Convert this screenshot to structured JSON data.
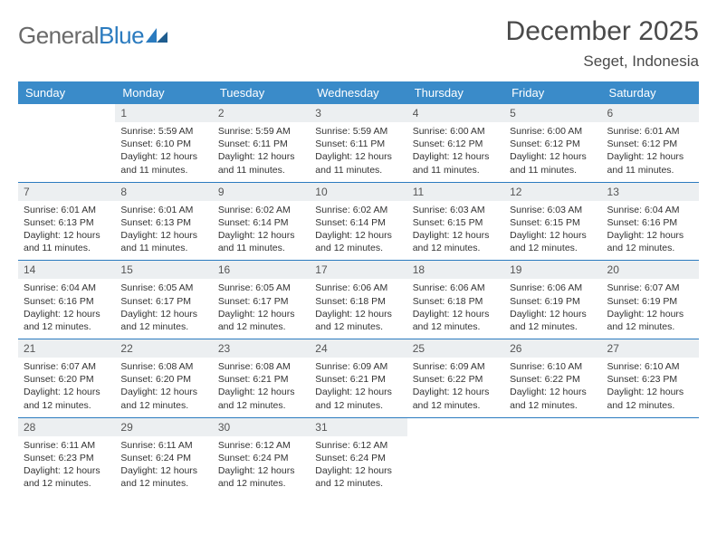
{
  "brand": {
    "part1": "General",
    "part2": "Blue"
  },
  "title": "December 2025",
  "location": "Seget, Indonesia",
  "colors": {
    "header_bg": "#3a8bc9",
    "header_text": "#ffffff",
    "rule": "#2b7bbf",
    "daynum_bg": "#eceff1",
    "text": "#333333",
    "logo_gray": "#6a6a6a",
    "logo_blue": "#2b7bbf",
    "page_bg": "#ffffff"
  },
  "fonts": {
    "title_pt": 30,
    "location_pt": 17,
    "dayhdr_pt": 13,
    "daynum_pt": 12,
    "body_pt": 10.5
  },
  "day_headers": [
    "Sunday",
    "Monday",
    "Tuesday",
    "Wednesday",
    "Thursday",
    "Friday",
    "Saturday"
  ],
  "weeks": [
    [
      {
        "n": "",
        "sr": "",
        "ss": "",
        "dl": ""
      },
      {
        "n": "1",
        "sr": "5:59 AM",
        "ss": "6:10 PM",
        "dl": "12 hours and 11 minutes."
      },
      {
        "n": "2",
        "sr": "5:59 AM",
        "ss": "6:11 PM",
        "dl": "12 hours and 11 minutes."
      },
      {
        "n": "3",
        "sr": "5:59 AM",
        "ss": "6:11 PM",
        "dl": "12 hours and 11 minutes."
      },
      {
        "n": "4",
        "sr": "6:00 AM",
        "ss": "6:12 PM",
        "dl": "12 hours and 11 minutes."
      },
      {
        "n": "5",
        "sr": "6:00 AM",
        "ss": "6:12 PM",
        "dl": "12 hours and 11 minutes."
      },
      {
        "n": "6",
        "sr": "6:01 AM",
        "ss": "6:12 PM",
        "dl": "12 hours and 11 minutes."
      }
    ],
    [
      {
        "n": "7",
        "sr": "6:01 AM",
        "ss": "6:13 PM",
        "dl": "12 hours and 11 minutes."
      },
      {
        "n": "8",
        "sr": "6:01 AM",
        "ss": "6:13 PM",
        "dl": "12 hours and 11 minutes."
      },
      {
        "n": "9",
        "sr": "6:02 AM",
        "ss": "6:14 PM",
        "dl": "12 hours and 11 minutes."
      },
      {
        "n": "10",
        "sr": "6:02 AM",
        "ss": "6:14 PM",
        "dl": "12 hours and 12 minutes."
      },
      {
        "n": "11",
        "sr": "6:03 AM",
        "ss": "6:15 PM",
        "dl": "12 hours and 12 minutes."
      },
      {
        "n": "12",
        "sr": "6:03 AM",
        "ss": "6:15 PM",
        "dl": "12 hours and 12 minutes."
      },
      {
        "n": "13",
        "sr": "6:04 AM",
        "ss": "6:16 PM",
        "dl": "12 hours and 12 minutes."
      }
    ],
    [
      {
        "n": "14",
        "sr": "6:04 AM",
        "ss": "6:16 PM",
        "dl": "12 hours and 12 minutes."
      },
      {
        "n": "15",
        "sr": "6:05 AM",
        "ss": "6:17 PM",
        "dl": "12 hours and 12 minutes."
      },
      {
        "n": "16",
        "sr": "6:05 AM",
        "ss": "6:17 PM",
        "dl": "12 hours and 12 minutes."
      },
      {
        "n": "17",
        "sr": "6:06 AM",
        "ss": "6:18 PM",
        "dl": "12 hours and 12 minutes."
      },
      {
        "n": "18",
        "sr": "6:06 AM",
        "ss": "6:18 PM",
        "dl": "12 hours and 12 minutes."
      },
      {
        "n": "19",
        "sr": "6:06 AM",
        "ss": "6:19 PM",
        "dl": "12 hours and 12 minutes."
      },
      {
        "n": "20",
        "sr": "6:07 AM",
        "ss": "6:19 PM",
        "dl": "12 hours and 12 minutes."
      }
    ],
    [
      {
        "n": "21",
        "sr": "6:07 AM",
        "ss": "6:20 PM",
        "dl": "12 hours and 12 minutes."
      },
      {
        "n": "22",
        "sr": "6:08 AM",
        "ss": "6:20 PM",
        "dl": "12 hours and 12 minutes."
      },
      {
        "n": "23",
        "sr": "6:08 AM",
        "ss": "6:21 PM",
        "dl": "12 hours and 12 minutes."
      },
      {
        "n": "24",
        "sr": "6:09 AM",
        "ss": "6:21 PM",
        "dl": "12 hours and 12 minutes."
      },
      {
        "n": "25",
        "sr": "6:09 AM",
        "ss": "6:22 PM",
        "dl": "12 hours and 12 minutes."
      },
      {
        "n": "26",
        "sr": "6:10 AM",
        "ss": "6:22 PM",
        "dl": "12 hours and 12 minutes."
      },
      {
        "n": "27",
        "sr": "6:10 AM",
        "ss": "6:23 PM",
        "dl": "12 hours and 12 minutes."
      }
    ],
    [
      {
        "n": "28",
        "sr": "6:11 AM",
        "ss": "6:23 PM",
        "dl": "12 hours and 12 minutes."
      },
      {
        "n": "29",
        "sr": "6:11 AM",
        "ss": "6:24 PM",
        "dl": "12 hours and 12 minutes."
      },
      {
        "n": "30",
        "sr": "6:12 AM",
        "ss": "6:24 PM",
        "dl": "12 hours and 12 minutes."
      },
      {
        "n": "31",
        "sr": "6:12 AM",
        "ss": "6:24 PM",
        "dl": "12 hours and 12 minutes."
      },
      {
        "n": "",
        "sr": "",
        "ss": "",
        "dl": ""
      },
      {
        "n": "",
        "sr": "",
        "ss": "",
        "dl": ""
      },
      {
        "n": "",
        "sr": "",
        "ss": "",
        "dl": ""
      }
    ]
  ],
  "labels": {
    "sunrise": "Sunrise: ",
    "sunset": "Sunset: ",
    "daylight": "Daylight: "
  }
}
